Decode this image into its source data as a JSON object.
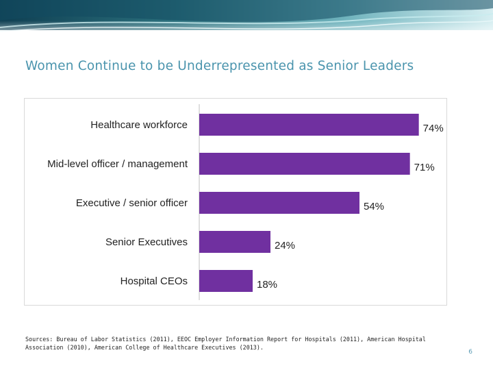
{
  "slide": {
    "title": "Women Continue to be Underrepresented as Senior Leaders",
    "sources": "Sources: Bureau of Labor Statistics (2011), EEOC Employer Information Report for Hospitals (2011), American Hospital Association (2010), American College of Healthcare Executives (2013).",
    "page_number": "6"
  },
  "colors": {
    "title": "#4a94ad",
    "bar": "#7030a0",
    "banner_dark": "#0f3f52",
    "banner_light": "#9fd0d8"
  },
  "chart_data": {
    "type": "bar",
    "orientation": "horizontal",
    "title": "",
    "xlabel": "",
    "ylabel": "",
    "xlim": [
      0,
      75
    ],
    "grid": false,
    "legend": "none",
    "categories": [
      "Healthcare workforce",
      "Mid-level officer / management",
      "Executive / senior officer",
      "Senior Executives",
      "Hospital CEOs"
    ],
    "values": [
      74,
      71,
      54,
      24,
      18
    ],
    "data_labels": [
      "74%",
      "71%",
      "54%",
      "24%",
      "18%"
    ]
  }
}
